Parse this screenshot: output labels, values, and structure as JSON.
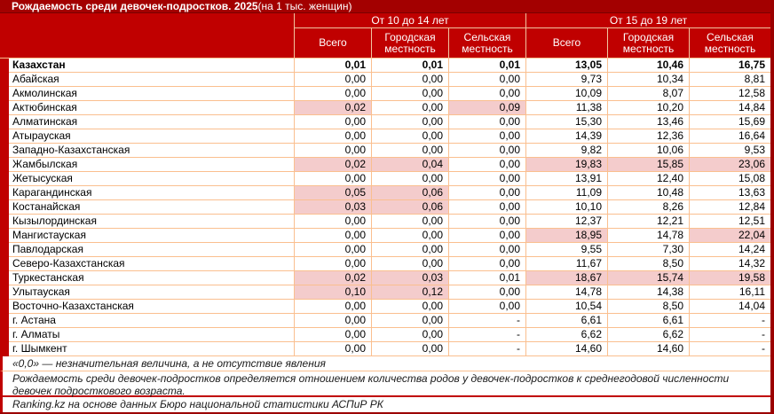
{
  "title": {
    "bold": "Рождаемость среди девочек-подростков. 2025",
    "suffix": " (на 1 тыс. женщин)"
  },
  "chart_data": {
    "type": "table",
    "title": "Рождаемость среди девочек-подростков. 2025 (на 1 тыс. женщин)",
    "column_groups": [
      "От 10 до 14 лет",
      "От 15 до 19 лет"
    ],
    "columns": [
      "Всего",
      "Городская местность",
      "Сельская местность",
      "Всего",
      "Городская местность",
      "Сельская местность"
    ],
    "rows": [
      {
        "name": "Казахстан",
        "bold": true,
        "values": [
          "0,01",
          "0,01",
          "0,01",
          "13,05",
          "10,46",
          "16,75"
        ]
      },
      {
        "name": "Абайская",
        "values": [
          "0,00",
          "0,00",
          "0,00",
          "9,73",
          "10,34",
          "8,81"
        ]
      },
      {
        "name": "Акмолинская",
        "values": [
          "0,00",
          "0,00",
          "0,00",
          "10,09",
          "8,07",
          "12,58"
        ]
      },
      {
        "name": "Актюбинская",
        "values": [
          "0,02",
          "0,00",
          "0,09",
          "11,38",
          "10,20",
          "14,84"
        ],
        "hl": [
          1,
          0,
          1,
          0,
          0,
          0
        ]
      },
      {
        "name": "Алматинская",
        "values": [
          "0,00",
          "0,00",
          "0,00",
          "15,30",
          "13,46",
          "15,69"
        ]
      },
      {
        "name": "Атырауская",
        "values": [
          "0,00",
          "0,00",
          "0,00",
          "14,39",
          "12,36",
          "16,64"
        ]
      },
      {
        "name": "Западно-Казахстанская",
        "values": [
          "0,00",
          "0,00",
          "0,00",
          "9,82",
          "10,06",
          "9,53"
        ]
      },
      {
        "name": "Жамбылская",
        "values": [
          "0,02",
          "0,04",
          "0,00",
          "19,83",
          "15,85",
          "23,06"
        ],
        "hl": [
          1,
          1,
          0,
          1,
          1,
          1
        ]
      },
      {
        "name": "Жетысуская",
        "values": [
          "0,00",
          "0,00",
          "0,00",
          "13,91",
          "12,40",
          "15,08"
        ]
      },
      {
        "name": "Карагандинская",
        "values": [
          "0,05",
          "0,06",
          "0,00",
          "11,09",
          "10,48",
          "13,63"
        ],
        "hl": [
          1,
          1,
          0,
          0,
          0,
          0
        ]
      },
      {
        "name": "Костанайская",
        "values": [
          "0,03",
          "0,06",
          "0,00",
          "10,10",
          "8,26",
          "12,84"
        ],
        "hl": [
          1,
          1,
          0,
          0,
          0,
          0
        ]
      },
      {
        "name": "Кызылординская",
        "values": [
          "0,00",
          "0,00",
          "0,00",
          "12,37",
          "12,21",
          "12,51"
        ]
      },
      {
        "name": "Мангистауская",
        "values": [
          "0,00",
          "0,00",
          "0,00",
          "18,95",
          "14,78",
          "22,04"
        ],
        "hl": [
          0,
          0,
          0,
          1,
          0,
          1
        ]
      },
      {
        "name": "Павлодарская",
        "values": [
          "0,00",
          "0,00",
          "0,00",
          "9,55",
          "7,30",
          "14,24"
        ]
      },
      {
        "name": "Северо-Казахстанская",
        "values": [
          "0,00",
          "0,00",
          "0,00",
          "11,67",
          "8,50",
          "14,32"
        ]
      },
      {
        "name": "Туркестанская",
        "values": [
          "0,02",
          "0,03",
          "0,01",
          "18,67",
          "15,74",
          "19,58"
        ],
        "hl": [
          1,
          1,
          0,
          1,
          1,
          1
        ]
      },
      {
        "name": "Улытауская",
        "values": [
          "0,10",
          "0,12",
          "0,00",
          "14,78",
          "14,38",
          "16,11"
        ],
        "hl": [
          1,
          1,
          0,
          0,
          0,
          0
        ]
      },
      {
        "name": "Восточно-Казахстанская",
        "values": [
          "0,00",
          "0,00",
          "0,00",
          "10,54",
          "8,50",
          "14,04"
        ]
      },
      {
        "name": "г. Астана",
        "values": [
          "0,00",
          "0,00",
          "-",
          "6,61",
          "6,61",
          "-"
        ]
      },
      {
        "name": "г. Алматы",
        "values": [
          "0,00",
          "0,00",
          "-",
          "6,62",
          "6,62",
          "-"
        ]
      },
      {
        "name": "г. Шымкент",
        "values": [
          "0,00",
          "0,00",
          "-",
          "14,60",
          "14,60",
          "-"
        ]
      }
    ]
  },
  "notes": [
    "«0,0» — незначительная величина, а не отсутствие явления",
    "Рождаемость среди девочек-подростков определяется отношением количества родов у девочек-подростков к среднегодовой численности девочек подросткового возраста."
  ],
  "source": "Ranking.kz на основе данных Бюро национальной статистики АСПиР РК",
  "colors": {
    "title_bg": "#A30000",
    "header_bg": "#C00000",
    "highlight": "#F4CCCC",
    "grid": "#FABF8F",
    "outer_border": "#9B0000",
    "header_text": "#FFFFFF"
  }
}
